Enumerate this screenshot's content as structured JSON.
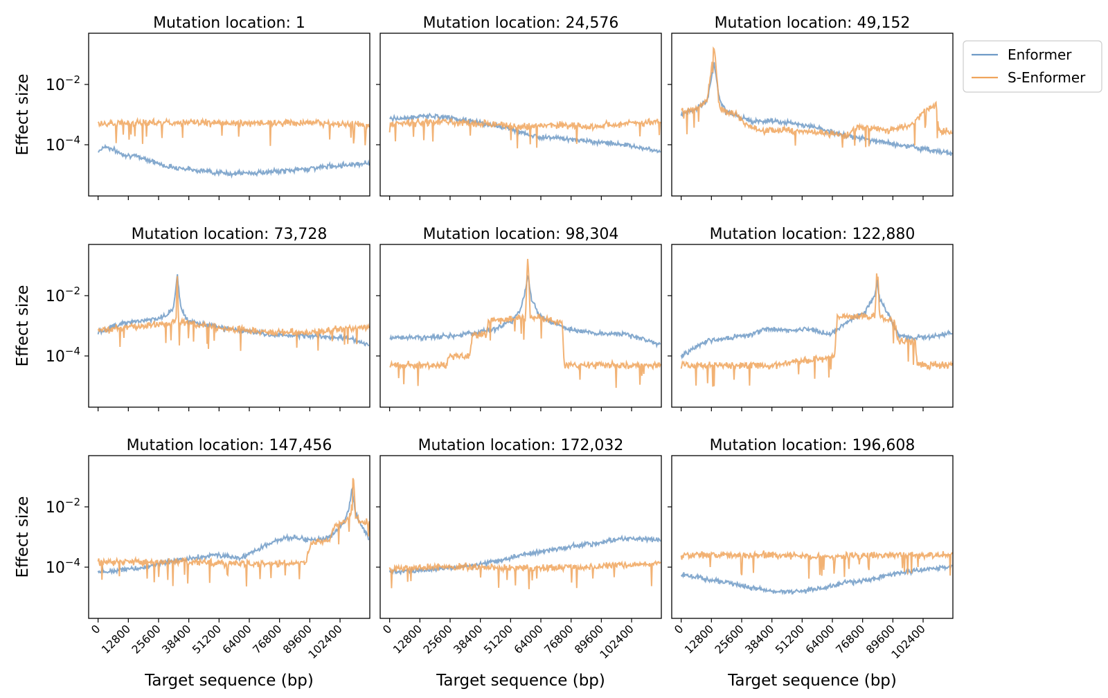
{
  "chart_data": {
    "type": "line",
    "layout": "3x3 small multiples, shared x and y axes",
    "y_scale": "log",
    "ylim": [
      2e-06,
      0.5
    ],
    "xlim": [
      -4000,
      115000
    ],
    "x_ticks": [
      0,
      12800,
      25600,
      38400,
      51200,
      64000,
      76800,
      89600,
      102400
    ],
    "x_tick_labels": [
      "0",
      "12800",
      "25600",
      "38400",
      "51200",
      "64000",
      "76800",
      "89600",
      "102400"
    ],
    "y_ticks": [
      0.01,
      0.0001
    ],
    "y_tick_labels": [
      {
        "base": "10",
        "exp": "−2"
      },
      {
        "base": "10",
        "exp": "−4"
      }
    ],
    "xlabel": "Target sequence (bp)",
    "ylabel": "Effect size",
    "grid": false,
    "legend": {
      "placement": "outside right of top-right panel",
      "entries": [
        {
          "name": "Enformer",
          "color": "#6e9ac6"
        },
        {
          "name": "S-Enformer",
          "color": "#f0a45c"
        }
      ]
    },
    "x_max": 114688,
    "panels": [
      {
        "title": "Mutation location: 1",
        "series": [
          {
            "name": "Enformer",
            "x": [
              0,
              3000,
              10000,
              20000,
              28000,
              40000,
              55000,
              70000,
              85000,
              100000,
              114688
            ],
            "y": [
              6e-05,
              9e-05,
              5e-05,
              3.5e-05,
              2e-05,
              1.5e-05,
              1.1e-05,
              1.2e-05,
              1.5e-05,
              2e-05,
              2.5e-05
            ]
          },
          {
            "name": "S-Enformer",
            "x": [
              0,
              20000,
              40000,
              60000,
              80000,
              100000,
              114688
            ],
            "y": [
              0.0005,
              0.00055,
              0.00055,
              0.0005,
              0.00055,
              0.0005,
              0.00045
            ]
          }
        ]
      },
      {
        "title": "Mutation location: 24,576",
        "series": [
          {
            "name": "Enformer",
            "x": [
              0,
              15000,
              25000,
              40000,
              50000,
              60000,
              70000,
              85000,
              100000,
              114688
            ],
            "y": [
              0.0007,
              0.0009,
              0.0008,
              0.0005,
              0.00035,
              0.0002,
              0.00017,
              0.00013,
              0.0001,
              6e-05
            ]
          },
          {
            "name": "S-Enformer",
            "x": [
              0,
              25000,
              40000,
              55000,
              70000,
              85000,
              100000,
              114688
            ],
            "y": [
              0.0005,
              0.0006,
              0.0005,
              0.0004,
              0.00045,
              0.0004,
              0.0005,
              0.0006
            ]
          }
        ]
      },
      {
        "title": "Mutation location: 49,152",
        "series": [
          {
            "name": "Enformer",
            "x": [
              0,
              6000,
              11000,
              14000,
              16000,
              19000,
              24000,
              30000,
              40000,
              55000,
              70000,
              85000,
              100000,
              114688
            ],
            "y": [
              0.001,
              0.0015,
              0.003,
              0.05,
              0.004,
              0.0012,
              0.0009,
              0.0006,
              0.0006,
              0.0004,
              0.0002,
              0.00012,
              8e-05,
              5e-05
            ]
          },
          {
            "name": "S-Enformer",
            "x": [
              0,
              6000,
              11000,
              14000,
              16000,
              19000,
              24000,
              27000,
              32000,
              45000,
              60000,
              70000,
              75000,
              88000,
              98000,
              103000,
              108000,
              109000,
              114688
            ],
            "y": [
              0.0013,
              0.0015,
              0.003,
              0.2,
              0.002,
              0.0012,
              0.001,
              0.0005,
              0.0003,
              0.0003,
              0.00025,
              0.0002,
              0.0004,
              0.0003,
              0.0005,
              0.0015,
              0.002,
              0.0003,
              0.00025
            ]
          }
        ]
      },
      {
        "title": "Mutation location: 73,728",
        "series": [
          {
            "name": "Enformer",
            "x": [
              0,
              10000,
              20000,
              28000,
              32000,
              33500,
              35000,
              38000,
              45000,
              60000,
              75000,
              90000,
              105000,
              114688
            ],
            "y": [
              0.0006,
              0.0012,
              0.0015,
              0.002,
              0.004,
              0.05,
              0.004,
              0.0015,
              0.0011,
              0.0007,
              0.0005,
              0.00045,
              0.0004,
              0.00025
            ]
          },
          {
            "name": "S-Enformer",
            "x": [
              0,
              15000,
              30000,
              33000,
              33500,
              34000,
              38000,
              55000,
              75000,
              90000,
              105000,
              114688
            ],
            "y": [
              0.0007,
              0.0009,
              0.0012,
              0.0015,
              0.1,
              0.0015,
              0.0012,
              0.0008,
              0.0006,
              0.0006,
              0.0008,
              0.0009
            ]
          }
        ]
      },
      {
        "title": "Mutation location: 98,304",
        "series": [
          {
            "name": "Enformer",
            "x": [
              0,
              15000,
              30000,
              45000,
              52000,
              55000,
              57000,
              58500,
              60000,
              64000,
              75000,
              85000,
              100000,
              114688
            ],
            "y": [
              0.0004,
              0.0004,
              0.0005,
              0.0008,
              0.0015,
              0.003,
              0.01,
              0.05,
              0.008,
              0.002,
              0.0008,
              0.0006,
              0.0005,
              0.00025
            ]
          },
          {
            "name": "S-Enformer",
            "x": [
              0,
              20000,
              24000,
              25000,
              32000,
              34000,
              35000,
              41000,
              42000,
              55000,
              57500,
              58500,
              59500,
              70000,
              73000,
              74000,
              90000,
              114688
            ],
            "y": [
              5e-05,
              5e-05,
              5e-05,
              0.0001,
              0.0001,
              0.0001,
              0.0005,
              0.0005,
              0.0015,
              0.0017,
              0.002,
              0.25,
              0.002,
              0.0015,
              0.0012,
              5e-05,
              5e-05,
              5e-05
            ]
          }
        ]
      },
      {
        "title": "Mutation location: 122,880",
        "series": [
          {
            "name": "Enformer",
            "x": [
              0,
              10000,
              20000,
              30000,
              35000,
              45000,
              55000,
              63000,
              68000,
              78000,
              82000,
              83000,
              84000,
              88000,
              92000,
              96000,
              104000,
              114688
            ],
            "y": [
              0.0001,
              0.0003,
              0.0004,
              0.0005,
              0.0008,
              0.0007,
              0.0008,
              0.0005,
              0.001,
              0.003,
              0.01,
              0.03,
              0.008,
              0.002,
              0.0005,
              0.0004,
              0.0004,
              0.0006
            ]
          },
          {
            "name": "S-Enformer",
            "x": [
              0,
              20000,
              40000,
              60000,
              65000,
              66000,
              75000,
              82000,
              83000,
              84000,
              90000,
              92000,
              99000,
              100000,
              114688
            ],
            "y": [
              5e-05,
              5e-05,
              5e-05,
              8e-05,
              0.0001,
              0.002,
              0.002,
              0.002,
              0.15,
              0.002,
              0.0015,
              0.0003,
              0.0003,
              5e-05,
              5e-05
            ]
          }
        ]
      },
      {
        "title": "Mutation location: 147,456",
        "series": [
          {
            "name": "Enformer",
            "x": [
              0,
              10000,
              20000,
              30000,
              40000,
              50000,
              60000,
              70000,
              80000,
              90000,
              98000,
              104000,
              106000,
              107500,
              109000,
              112000,
              114688
            ],
            "y": [
              7e-05,
              8e-05,
              0.0001,
              0.00015,
              0.0002,
              0.00025,
              0.0002,
              0.0005,
              0.001,
              0.0008,
              0.001,
              0.003,
              0.008,
              0.04,
              0.006,
              0.002,
              0.0008
            ]
          },
          {
            "name": "S-Enformer",
            "x": [
              0,
              20000,
              40000,
              60000,
              80000,
              88000,
              90000,
              98000,
              100000,
              104000,
              107000,
              108000,
              109000,
              112000,
              114688
            ],
            "y": [
              0.00015,
              0.00015,
              0.00015,
              0.00013,
              0.00013,
              0.00015,
              0.0006,
              0.0008,
              0.0025,
              0.003,
              0.005,
              0.15,
              0.004,
              0.003,
              0.003
            ]
          }
        ]
      },
      {
        "title": "Mutation location: 172,032",
        "series": [
          {
            "name": "Enformer",
            "x": [
              0,
              15000,
              30000,
              45000,
              55000,
              70000,
              85000,
              100000,
              114688
            ],
            "y": [
              7e-05,
              8e-05,
              0.0001,
              0.00015,
              0.00025,
              0.0004,
              0.0006,
              0.0009,
              0.0008
            ]
          },
          {
            "name": "S-Enformer",
            "x": [
              0,
              20000,
              40000,
              60000,
              80000,
              100000,
              114688
            ],
            "y": [
              9e-05,
              0.0001,
              0.0001,
              9e-05,
              0.0001,
              0.00012,
              0.00014
            ]
          }
        ]
      },
      {
        "title": "Mutation location: 196,608",
        "series": [
          {
            "name": "Enformer",
            "x": [
              0,
              10000,
              20000,
              30000,
              40000,
              50000,
              60000,
              70000,
              80000,
              90000,
              100000,
              114688
            ],
            "y": [
              6e-05,
              4e-05,
              3e-05,
              2e-05,
              1.5e-05,
              1.5e-05,
              2e-05,
              3e-05,
              4e-05,
              6e-05,
              8e-05,
              0.0001
            ]
          },
          {
            "name": "S-Enformer",
            "x": [
              0,
              20000,
              40000,
              60000,
              80000,
              100000,
              114688
            ],
            "y": [
              0.00025,
              0.00025,
              0.00025,
              0.00022,
              0.00025,
              0.00025,
              0.00025
            ]
          }
        ]
      }
    ]
  }
}
